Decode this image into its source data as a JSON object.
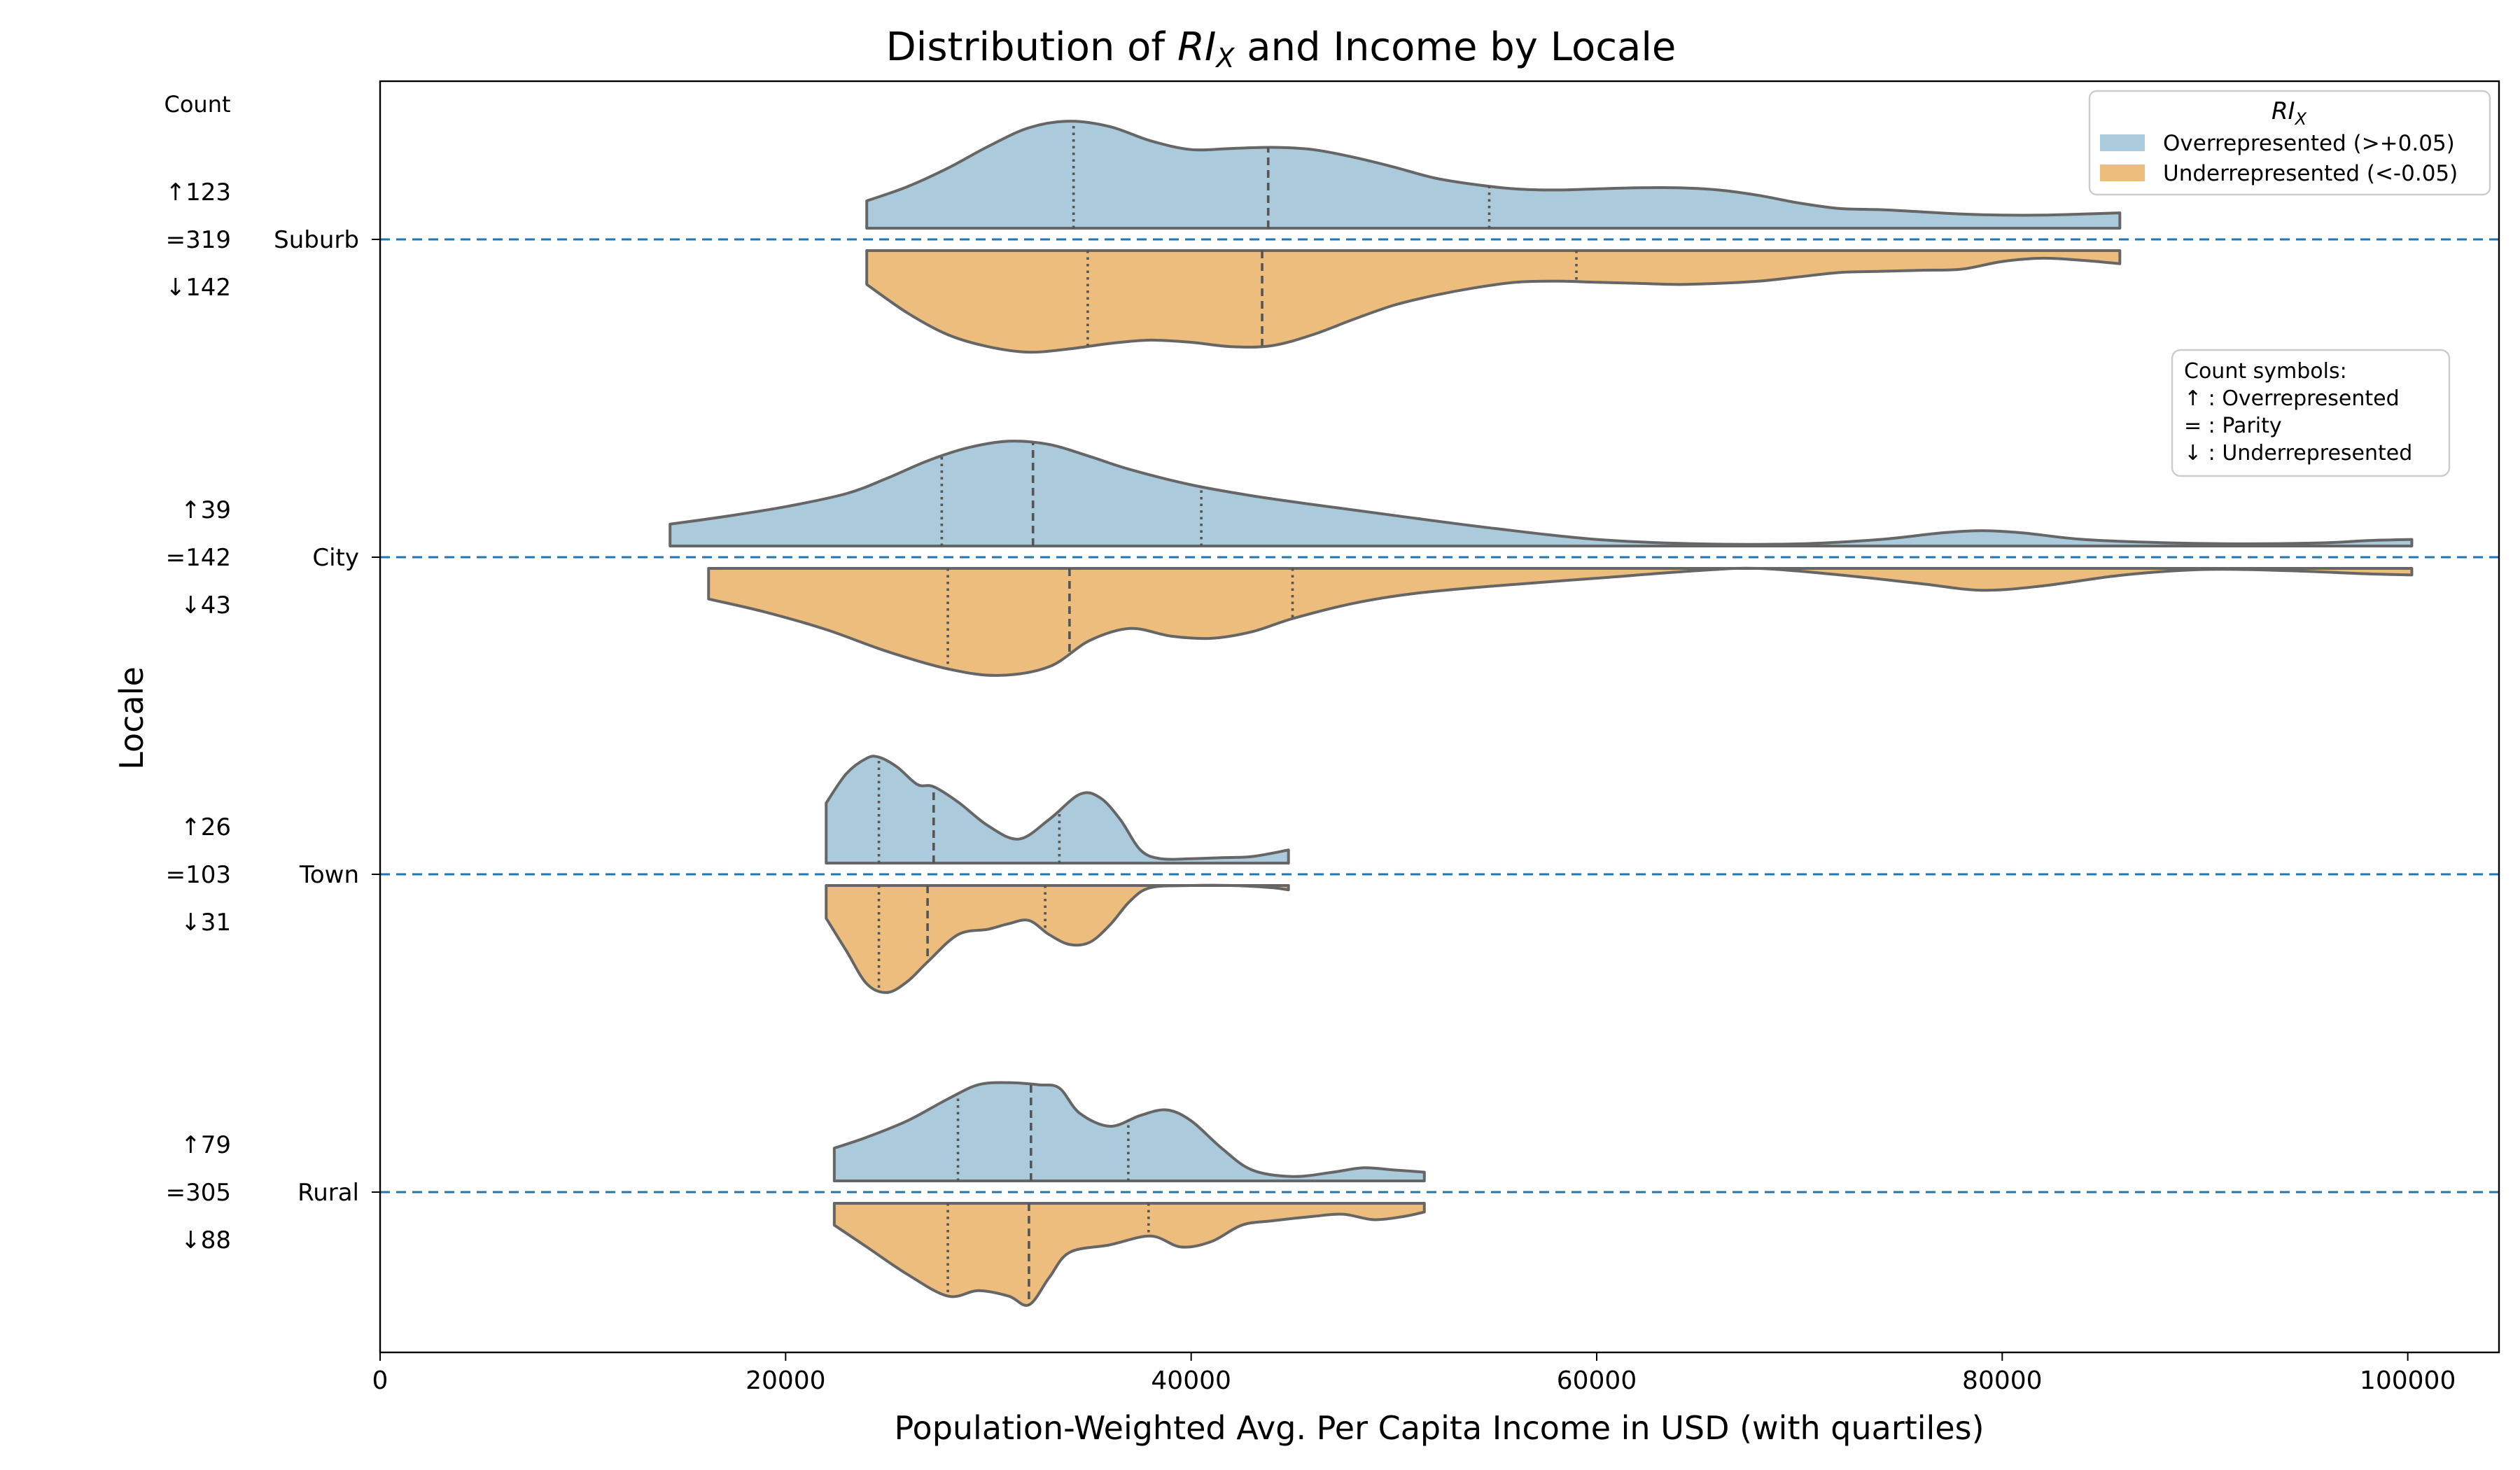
{
  "chart_data": {
    "type": "violin",
    "title": "Distribution of RI_X and Income by Locale",
    "title_parts": {
      "prefix": "Distribution of ",
      "var_main": "RI",
      "var_sub": "X",
      "suffix": " and Income by Locale"
    },
    "xlabel": "Population-Weighted Avg. Per Capita Income in USD (with quartiles)",
    "ylabel": "Locale",
    "xlim": [
      0,
      104500
    ],
    "xticks": [
      0,
      20000,
      40000,
      60000,
      80000,
      100000
    ],
    "xtick_labels": [
      "0",
      "20000",
      "40000",
      "60000",
      "80000",
      "100000"
    ],
    "count_header": "Count",
    "legend": {
      "title_main": "RI",
      "title_sub": "X",
      "placement": "top-right",
      "entries": [
        {
          "label": "Overrepresented (>+0.05)",
          "color": "#abcadb"
        },
        {
          "label": "Underrepresented (<-0.05)",
          "color": "#ecbd7d"
        }
      ]
    },
    "symbol_box": {
      "lines": [
        "Count symbols:",
        "↑ : Overrepresented",
        "= : Parity",
        "↓ : Underrepresented"
      ]
    },
    "colors": {
      "over": "#abcadb",
      "under": "#ecbd7d",
      "baseline": "#1f77b4",
      "outline": "#666666"
    },
    "categories": [
      {
        "name": "Suburb",
        "counts": {
          "over": "↑123",
          "parity": "=319",
          "under": "↓142"
        },
        "over": {
          "range": [
            24000,
            85800
          ],
          "quartiles": [
            34200,
            43800,
            54700
          ],
          "density": [
            [
              24000,
              0.25
            ],
            [
              26000,
              0.38
            ],
            [
              28000,
              0.55
            ],
            [
              30000,
              0.75
            ],
            [
              32000,
              0.92
            ],
            [
              34000,
              0.98
            ],
            [
              36000,
              0.93
            ],
            [
              38000,
              0.8
            ],
            [
              40000,
              0.72
            ],
            [
              42000,
              0.73
            ],
            [
              44000,
              0.74
            ],
            [
              46000,
              0.72
            ],
            [
              48000,
              0.65
            ],
            [
              50000,
              0.56
            ],
            [
              52000,
              0.46
            ],
            [
              54000,
              0.4
            ],
            [
              56000,
              0.36
            ],
            [
              58000,
              0.35
            ],
            [
              60000,
              0.36
            ],
            [
              62000,
              0.37
            ],
            [
              64000,
              0.37
            ],
            [
              66000,
              0.35
            ],
            [
              68000,
              0.3
            ],
            [
              70000,
              0.23
            ],
            [
              72000,
              0.18
            ],
            [
              74000,
              0.17
            ],
            [
              76000,
              0.15
            ],
            [
              78000,
              0.13
            ],
            [
              80000,
              0.12
            ],
            [
              82000,
              0.12
            ],
            [
              84000,
              0.13
            ],
            [
              85800,
              0.14
            ]
          ]
        },
        "under": {
          "range": [
            24000,
            85800
          ],
          "quartiles": [
            34900,
            43500,
            59000
          ],
          "density": [
            [
              24000,
              0.31
            ],
            [
              26000,
              0.57
            ],
            [
              28000,
              0.77
            ],
            [
              30000,
              0.88
            ],
            [
              32000,
              0.93
            ],
            [
              34000,
              0.9
            ],
            [
              36000,
              0.85
            ],
            [
              38000,
              0.82
            ],
            [
              40000,
              0.84
            ],
            [
              42000,
              0.88
            ],
            [
              44000,
              0.87
            ],
            [
              46000,
              0.77
            ],
            [
              48000,
              0.63
            ],
            [
              50000,
              0.5
            ],
            [
              52000,
              0.41
            ],
            [
              54000,
              0.34
            ],
            [
              56000,
              0.29
            ],
            [
              58000,
              0.28
            ],
            [
              60000,
              0.29
            ],
            [
              62000,
              0.3
            ],
            [
              64000,
              0.31
            ],
            [
              66000,
              0.3
            ],
            [
              68000,
              0.28
            ],
            [
              70000,
              0.24
            ],
            [
              72000,
              0.2
            ],
            [
              74000,
              0.19
            ],
            [
              76000,
              0.18
            ],
            [
              78000,
              0.17
            ],
            [
              80000,
              0.1
            ],
            [
              82000,
              0.07
            ],
            [
              84000,
              0.09
            ],
            [
              85800,
              0.12
            ]
          ]
        }
      },
      {
        "name": "City",
        "counts": {
          "over": "↑39",
          "parity": "=142",
          "under": "↓43"
        },
        "over": {
          "range": [
            14300,
            100200
          ],
          "quartiles": [
            27700,
            32200,
            40500
          ],
          "density": [
            [
              14300,
              0.2
            ],
            [
              17000,
              0.27
            ],
            [
              20000,
              0.36
            ],
            [
              23000,
              0.48
            ],
            [
              25000,
              0.62
            ],
            [
              27000,
              0.78
            ],
            [
              29000,
              0.9
            ],
            [
              31000,
              0.96
            ],
            [
              33000,
              0.93
            ],
            [
              35000,
              0.82
            ],
            [
              37000,
              0.7
            ],
            [
              40000,
              0.56
            ],
            [
              43000,
              0.46
            ],
            [
              46000,
              0.38
            ],
            [
              50000,
              0.28
            ],
            [
              55000,
              0.16
            ],
            [
              60000,
              0.06
            ],
            [
              65000,
              0.02
            ],
            [
              70000,
              0.02
            ],
            [
              74000,
              0.06
            ],
            [
              77000,
              0.12
            ],
            [
              79000,
              0.14
            ],
            [
              81000,
              0.12
            ],
            [
              84000,
              0.06
            ],
            [
              88000,
              0.03
            ],
            [
              92000,
              0.02
            ],
            [
              96000,
              0.03
            ],
            [
              98000,
              0.05
            ],
            [
              100200,
              0.06
            ]
          ]
        },
        "under": {
          "range": [
            16200,
            100200
          ],
          "quartiles": [
            28000,
            34000,
            45000
          ],
          "density": [
            [
              16200,
              0.28
            ],
            [
              19000,
              0.4
            ],
            [
              22000,
              0.56
            ],
            [
              25000,
              0.76
            ],
            [
              28000,
              0.92
            ],
            [
              30500,
              0.98
            ],
            [
              33000,
              0.9
            ],
            [
              35000,
              0.66
            ],
            [
              37000,
              0.55
            ],
            [
              39000,
              0.62
            ],
            [
              41000,
              0.64
            ],
            [
              43000,
              0.58
            ],
            [
              45000,
              0.46
            ],
            [
              48000,
              0.32
            ],
            [
              51000,
              0.23
            ],
            [
              55000,
              0.16
            ],
            [
              60000,
              0.09
            ],
            [
              65000,
              0.02
            ],
            [
              68000,
              0.0
            ],
            [
              72000,
              0.06
            ],
            [
              76000,
              0.14
            ],
            [
              79000,
              0.2
            ],
            [
              82000,
              0.16
            ],
            [
              86000,
              0.06
            ],
            [
              90000,
              0.01
            ],
            [
              94000,
              0.02
            ],
            [
              98000,
              0.05
            ],
            [
              100200,
              0.06
            ]
          ]
        }
      },
      {
        "name": "Town",
        "counts": {
          "over": "↑26",
          "parity": "=103",
          "under": "↓31"
        },
        "over": {
          "range": [
            22000,
            44800
          ],
          "quartiles": [
            24600,
            27300,
            33500
          ],
          "density": [
            [
              22000,
              0.55
            ],
            [
              23000,
              0.82
            ],
            [
              24000,
              0.96
            ],
            [
              24600,
              0.97
            ],
            [
              25500,
              0.88
            ],
            [
              26500,
              0.72
            ],
            [
              27300,
              0.7
            ],
            [
              28500,
              0.56
            ],
            [
              30000,
              0.34
            ],
            [
              31500,
              0.22
            ],
            [
              33000,
              0.4
            ],
            [
              34500,
              0.63
            ],
            [
              35500,
              0.6
            ],
            [
              36500,
              0.4
            ],
            [
              37500,
              0.12
            ],
            [
              38500,
              0.04
            ],
            [
              40000,
              0.04
            ],
            [
              41500,
              0.05
            ],
            [
              43000,
              0.06
            ],
            [
              44800,
              0.12
            ]
          ]
        },
        "under": {
          "range": [
            22000,
            44800
          ],
          "quartiles": [
            24600,
            27000,
            32800
          ],
          "density": [
            [
              22000,
              0.3
            ],
            [
              23000,
              0.6
            ],
            [
              24000,
              0.9
            ],
            [
              25000,
              0.98
            ],
            [
              26000,
              0.88
            ],
            [
              27000,
              0.7
            ],
            [
              28500,
              0.45
            ],
            [
              30000,
              0.4
            ],
            [
              31000,
              0.35
            ],
            [
              32000,
              0.32
            ],
            [
              33000,
              0.45
            ],
            [
              34000,
              0.54
            ],
            [
              35000,
              0.52
            ],
            [
              36000,
              0.36
            ],
            [
              37000,
              0.14
            ],
            [
              38000,
              0.02
            ],
            [
              40000,
              0.0
            ],
            [
              42000,
              0.0
            ],
            [
              44000,
              0.02
            ],
            [
              44800,
              0.04
            ]
          ]
        }
      },
      {
        "name": "Rural",
        "counts": {
          "over": "↑79",
          "parity": "=305",
          "under": "↓88"
        },
        "over": {
          "range": [
            22400,
            51500
          ],
          "quartiles": [
            28500,
            32100,
            36900
          ],
          "density": [
            [
              22400,
              0.3
            ],
            [
              24000,
              0.4
            ],
            [
              26000,
              0.55
            ],
            [
              28000,
              0.75
            ],
            [
              29500,
              0.88
            ],
            [
              31000,
              0.9
            ],
            [
              32500,
              0.88
            ],
            [
              33500,
              0.85
            ],
            [
              34500,
              0.62
            ],
            [
              36000,
              0.5
            ],
            [
              37500,
              0.6
            ],
            [
              38800,
              0.65
            ],
            [
              40000,
              0.55
            ],
            [
              41500,
              0.3
            ],
            [
              43000,
              0.1
            ],
            [
              45000,
              0.04
            ],
            [
              47000,
              0.08
            ],
            [
              48500,
              0.12
            ],
            [
              50000,
              0.1
            ],
            [
              51500,
              0.08
            ]
          ]
        },
        "under": {
          "range": [
            22400,
            51500
          ],
          "quartiles": [
            28000,
            32000,
            37900
          ],
          "density": [
            [
              22400,
              0.2
            ],
            [
              24000,
              0.4
            ],
            [
              26000,
              0.65
            ],
            [
              28000,
              0.85
            ],
            [
              29500,
              0.8
            ],
            [
              31000,
              0.85
            ],
            [
              32000,
              0.93
            ],
            [
              33000,
              0.68
            ],
            [
              34000,
              0.45
            ],
            [
              36000,
              0.38
            ],
            [
              38000,
              0.3
            ],
            [
              39500,
              0.4
            ],
            [
              41000,
              0.35
            ],
            [
              42500,
              0.2
            ],
            [
              44000,
              0.16
            ],
            [
              46000,
              0.12
            ],
            [
              47500,
              0.1
            ],
            [
              49000,
              0.15
            ],
            [
              50500,
              0.12
            ],
            [
              51500,
              0.08
            ]
          ]
        }
      }
    ]
  }
}
